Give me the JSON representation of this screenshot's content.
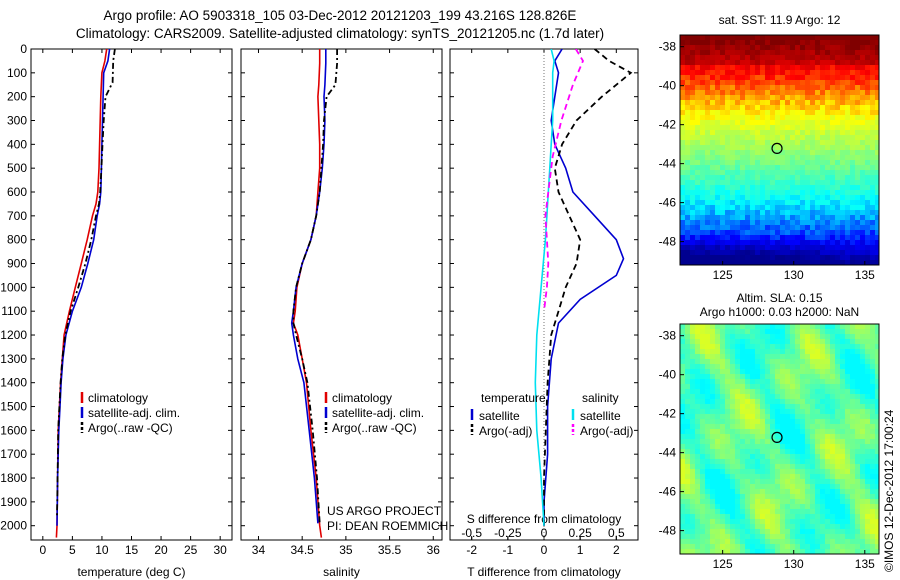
{
  "title": {
    "line1": "Argo profile: AO 5903318_105 03-Dec-2012 20121203_199 43.216S 128.826E",
    "line2": "Climatology: CARS2009. Satellite-adjusted climatology: synTS_20121205.nc (1.7d later)"
  },
  "vertical_label": "©IMOS 12-Dec-2012 17:00:24",
  "credit": {
    "line1": "US ARGO PROJECT",
    "line2": "PI: DEAN ROEMMICH"
  },
  "colors": {
    "red": "#e00000",
    "blue": "#0000d0",
    "black": "#000000",
    "cyan": "#00e0f0",
    "magenta": "#ff00ff"
  },
  "chart_data": [
    {
      "type": "line",
      "name": "temperature",
      "xlabel": "temperature (deg C)",
      "ylabel": "",
      "xlim": [
        -2,
        32
      ],
      "ylim": [
        2060,
        0
      ],
      "xticks": [
        0,
        5,
        10,
        15,
        20,
        25,
        30
      ],
      "yticks": [
        0,
        100,
        200,
        300,
        400,
        500,
        600,
        700,
        800,
        900,
        1000,
        1100,
        1200,
        1300,
        1400,
        1500,
        1600,
        1700,
        1800,
        1900,
        2000
      ],
      "legend": [
        "climatology",
        "satellite-adj. clim.",
        "Argo(..raw -QC)"
      ],
      "series": [
        {
          "name": "climatology",
          "color": "#e00000",
          "style": "solid",
          "x": [
            10.8,
            10.5,
            10.0,
            9.8,
            9.7,
            9.6,
            9.5,
            9.3,
            9.0,
            8.4,
            7.5,
            6.5,
            5.5,
            4.5,
            3.6,
            3.3,
            3.0,
            2.8,
            2.6,
            2.5,
            2.4,
            2.3
          ],
          "y": [
            0,
            50,
            100,
            200,
            300,
            400,
            500,
            600,
            650,
            700,
            800,
            900,
            1000,
            1100,
            1200,
            1300,
            1400,
            1500,
            1600,
            1800,
            2000,
            2050
          ]
        },
        {
          "name": "satellite-adj. clim.",
          "color": "#0000d0",
          "style": "solid",
          "x": [
            11.3,
            11.0,
            10.3,
            10.2,
            10.1,
            10.0,
            9.9,
            9.8,
            9.6,
            9.2,
            8.6,
            7.6,
            6.5,
            5.0,
            3.9,
            3.4,
            3.1,
            2.9,
            2.7,
            2.5,
            2.4
          ],
          "y": [
            0,
            50,
            100,
            200,
            300,
            400,
            500,
            600,
            650,
            700,
            800,
            900,
            1000,
            1100,
            1200,
            1300,
            1400,
            1500,
            1600,
            1800,
            2000
          ]
        },
        {
          "name": "Argo(..raw -QC)",
          "color": "#000000",
          "style": "dashdot",
          "x": [
            12.2,
            11.9,
            11.8,
            10.6,
            10.3,
            10.1,
            9.9,
            9.7,
            9.5,
            9.0,
            8.2,
            7.2,
            6.0,
            4.7,
            3.8,
            3.3,
            3.0,
            2.8,
            2.6,
            2.5,
            2.4
          ],
          "y": [
            0,
            50,
            140,
            200,
            300,
            400,
            500,
            600,
            650,
            700,
            800,
            900,
            1000,
            1100,
            1200,
            1300,
            1400,
            1500,
            1600,
            1800,
            1960
          ]
        }
      ]
    },
    {
      "type": "line",
      "name": "salinity",
      "xlabel": "salinity",
      "ylabel": "",
      "xlim": [
        33.8,
        36.1
      ],
      "ylim": [
        2060,
        0
      ],
      "xticks": [
        34,
        34.5,
        35,
        35.5,
        36
      ],
      "xticklabels": [
        "34",
        "34.5",
        "35",
        "35.5",
        "36"
      ],
      "legend": [
        "climatology",
        "satellite-adj. clim.",
        "Argo(..raw -QC)"
      ],
      "series": [
        {
          "name": "climatology",
          "color": "#e00000",
          "style": "solid",
          "x": [
            34.7,
            34.7,
            34.69,
            34.68,
            34.69,
            34.7,
            34.7,
            34.68,
            34.66,
            34.6,
            34.5,
            34.44,
            34.42,
            34.4,
            34.45,
            34.5,
            34.55,
            34.6,
            34.66,
            34.7,
            34.72
          ],
          "y": [
            0,
            60,
            150,
            200,
            300,
            400,
            500,
            600,
            700,
            800,
            900,
            1000,
            1100,
            1150,
            1200,
            1300,
            1400,
            1600,
            1800,
            2000,
            2050
          ]
        },
        {
          "name": "satellite-adj. clim.",
          "color": "#0000d0",
          "style": "solid",
          "x": [
            34.77,
            34.77,
            34.76,
            34.75,
            34.76,
            34.75,
            34.73,
            34.7,
            34.66,
            34.6,
            34.5,
            34.43,
            34.4,
            34.38,
            34.4,
            34.45,
            34.52,
            34.58,
            34.64,
            34.68
          ],
          "y": [
            0,
            60,
            150,
            200,
            300,
            400,
            500,
            600,
            700,
            800,
            900,
            1000,
            1100,
            1150,
            1200,
            1300,
            1400,
            1600,
            1800,
            1990
          ]
        },
        {
          "name": "Argo(..raw -QC)",
          "color": "#000000",
          "style": "dashdot",
          "x": [
            34.9,
            34.9,
            34.88,
            34.78,
            34.75,
            34.74,
            34.72,
            34.7,
            34.66,
            34.6,
            34.5,
            34.43,
            34.4,
            34.4,
            34.43,
            34.5,
            34.56,
            34.62,
            34.67,
            34.7
          ],
          "y": [
            0,
            60,
            150,
            200,
            300,
            400,
            500,
            600,
            700,
            800,
            900,
            1000,
            1100,
            1150,
            1200,
            1300,
            1400,
            1600,
            1800,
            1990
          ]
        }
      ]
    },
    {
      "type": "line",
      "name": "differences",
      "xlabel": "T difference from climatology",
      "x2label": "S difference from climatology",
      "ylabel": "",
      "xlim": [
        -2.6,
        2.6
      ],
      "ylim": [
        2060,
        0
      ],
      "xticks": [
        -2,
        -1,
        0,
        1,
        2
      ],
      "x2lim": [
        -0.65,
        0.65
      ],
      "x2ticks": [
        -0.5,
        -0.25,
        0,
        0.25,
        0.5
      ],
      "x2ticklabels": [
        "-0.5",
        "-0.25",
        "0",
        "0.25",
        "0.5"
      ],
      "legend_temperature_header": "temperature",
      "legend_salinity_header": "salinity",
      "legend": [
        "satellite",
        "Argo(-adj)",
        "satellite",
        "Argo(-adj)"
      ],
      "series": [
        {
          "name": "satellite",
          "group": "temperature",
          "axis": "T",
          "color": "#0000d0",
          "style": "solid",
          "x": [
            0.5,
            0.3,
            0.4,
            0.3,
            0.2,
            0.3,
            0.6,
            0.7,
            0.8,
            1.4,
            2.0,
            2.2,
            2.0,
            1.0,
            0.4,
            0.2,
            0.1,
            0.1,
            0.0,
            0.0
          ],
          "y": [
            0,
            50,
            100,
            200,
            300,
            400,
            500,
            550,
            600,
            700,
            800,
            880,
            950,
            1050,
            1150,
            1300,
            1500,
            1700,
            1900,
            2000
          ]
        },
        {
          "name": "Argo(-adj)",
          "group": "temperature",
          "axis": "T",
          "color": "#000000",
          "style": "dashed",
          "x": [
            1.4,
            1.8,
            2.4,
            2.0,
            1.6,
            0.9,
            0.5,
            0.3,
            0.4,
            0.7,
            1.0,
            0.9,
            0.6,
            0.4,
            0.2,
            0.1,
            0.05,
            0.0,
            0.0
          ],
          "y": [
            0,
            50,
            100,
            150,
            200,
            300,
            400,
            500,
            600,
            700,
            800,
            900,
            1000,
            1100,
            1200,
            1400,
            1600,
            1800,
            2000
          ]
        },
        {
          "name": "satellite",
          "group": "salinity",
          "axis": "S",
          "color": "#00e0f0",
          "style": "solid",
          "x": [
            0.05,
            0.07,
            0.06,
            0.06,
            0.06,
            0.05,
            0.04,
            0.03,
            0.02,
            0.01,
            -0.02,
            -0.05,
            -0.06,
            -0.05,
            -0.02,
            0.0
          ],
          "y": [
            0,
            50,
            100,
            200,
            300,
            400,
            500,
            600,
            700,
            800,
            1000,
            1200,
            1400,
            1600,
            1800,
            2000
          ]
        },
        {
          "name": "Argo(-adj)",
          "group": "salinity",
          "axis": "S",
          "color": "#ff00ff",
          "style": "dashed",
          "x": [
            0.22,
            0.27,
            0.2,
            0.12,
            0.06,
            0.03,
            0.01,
            0.02,
            0.03,
            0.02,
            0.0
          ],
          "y": [
            0,
            50,
            150,
            300,
            450,
            600,
            700,
            800,
            900,
            1000,
            1100
          ]
        }
      ]
    },
    {
      "type": "heatmap",
      "name": "sst-map",
      "title": "sat. SST: 11.9  Argo: 12",
      "xlim": [
        122,
        136
      ],
      "ylim": [
        -49.2,
        -37.4
      ],
      "xticks": [
        125,
        130,
        135
      ],
      "yticks": [
        -38,
        -40,
        -42,
        -44,
        -46,
        -48
      ],
      "marker": {
        "lon": 128.826,
        "lat": -43.216
      }
    },
    {
      "type": "heatmap",
      "name": "sla-map",
      "title": "Altim. SLA: 0.15",
      "subtitle": "Argo h1000: 0.03 h2000: NaN",
      "xlim": [
        122,
        136
      ],
      "ylim": [
        -49.2,
        -37.4
      ],
      "xticks": [
        125,
        130,
        135
      ],
      "yticks": [
        -38,
        -40,
        -42,
        -44,
        -46,
        -48
      ],
      "marker": {
        "lon": 128.826,
        "lat": -43.216
      }
    }
  ]
}
